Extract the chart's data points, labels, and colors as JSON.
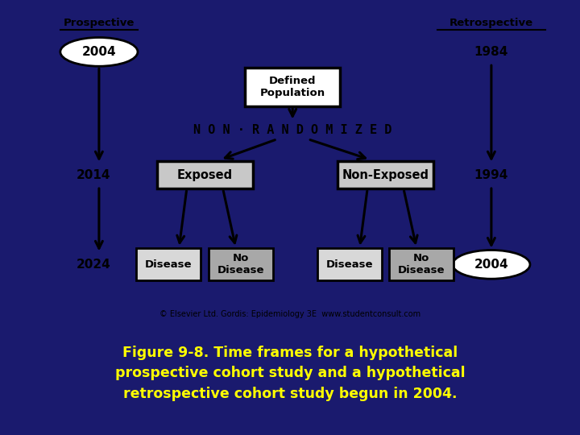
{
  "bg_color": "#1a1a6e",
  "diagram_bg": "#ffffff",
  "caption_text": "Figure 9-8. Time frames for a hypothetical\nprospective cohort study and a hypothetical\nretrospective cohort study begun in 2004.",
  "caption_color": "#ffff00",
  "caption_fontsize": 12.5,
  "copyright_text": "© Elsevier Ltd. Gordis: Epidemiology 3E  www.studentconsult.com",
  "prospective_label": "Prospective",
  "retrospective_label": "Retrospective",
  "nonrandomized_text": "N O N · R A N D O M I Z E D",
  "defined_population_text": "Defined\nPopulation",
  "exposed_text": "Exposed",
  "nonexposed_text": "Non-Exposed",
  "disease1_text": "Disease",
  "nodisease1_text": "No\nDisease",
  "disease2_text": "Disease",
  "nodisease2_text": "No\nDisease",
  "year_2004_top": "2004",
  "year_2014": "2014",
  "year_2024": "2024",
  "year_1984": "1984",
  "year_1994": "1994",
  "year_2004_bot": "2004",
  "exposed_fc": "#c8c8c8",
  "nodisease_fc": "#a8a8a8",
  "disease_fc": "#d8d8d8"
}
